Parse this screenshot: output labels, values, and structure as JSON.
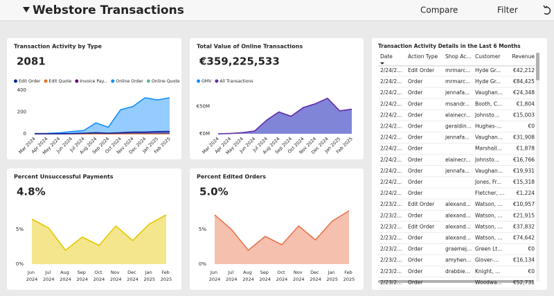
{
  "header": {
    "title": "Webstore Transactions",
    "actions": [
      "Compare",
      "Filter"
    ]
  },
  "chart_data": [
    {
      "type": "area",
      "title": "Transaction Activity by Type",
      "kpi": "2081",
      "categories": [
        "Mar 2024",
        "Apr 2024",
        "May 2024",
        "Jun 2024",
        "Jul 2024",
        "Aug 2024",
        "Sep 2024",
        "Oct 2024",
        "Nov 2024",
        "Dec 2024",
        "Jan 2025",
        "Feb 2025"
      ],
      "series": [
        {
          "name": "Online Order",
          "color": "#118dff",
          "values": [
            3,
            4,
            8,
            20,
            30,
            100,
            60,
            220,
            250,
            330,
            310,
            330
          ]
        },
        {
          "name": "Online Quote",
          "color": "#5fb7a0",
          "values": [
            0,
            0,
            0,
            0,
            0,
            0,
            0,
            0,
            0,
            0,
            0,
            0
          ]
        },
        {
          "name": "Invoice Pay...",
          "color": "#6b007b",
          "values": [
            0,
            0,
            0,
            0,
            1,
            2,
            1,
            2,
            2,
            3,
            3,
            3
          ]
        },
        {
          "name": "Edit Quote",
          "color": "#e8702a",
          "values": [
            0,
            0,
            0,
            0,
            0,
            0,
            0,
            0,
            1,
            1,
            1,
            1
          ]
        },
        {
          "name": "Edit Order",
          "color": "#12239e",
          "values": [
            0,
            0,
            1,
            2,
            5,
            10,
            5,
            10,
            15,
            15,
            20,
            22
          ]
        }
      ],
      "legend_order": [
        4,
        3,
        2,
        0,
        1
      ],
      "ylim": [
        0,
        400
      ],
      "yticks": [
        0,
        200,
        400
      ]
    },
    {
      "type": "area",
      "title": "Total Value of Online Transactions",
      "kpi": "€359,225,533",
      "categories": [
        "Mar 2024",
        "Apr 2024",
        "May 2024",
        "Jun 2024",
        "Jul 2024",
        "Aug 2024",
        "Sep 2024",
        "Oct 2024",
        "Nov 2024",
        "Dec 2024",
        "Jan 2025",
        "Feb 2025"
      ],
      "series": [
        {
          "name": "GMV",
          "color": "#118dff",
          "values": [
            0,
            0.5,
            2,
            5,
            25,
            40,
            32,
            48,
            55,
            65,
            42,
            45
          ]
        },
        {
          "name": "All Transactions",
          "color": "#6b2fa8",
          "values": [
            0,
            0.5,
            2,
            5,
            25,
            40,
            32,
            48,
            55,
            65,
            42,
            45
          ]
        }
      ],
      "legend_order": [
        0,
        1
      ],
      "ylim": [
        0,
        80
      ],
      "yticks": [
        {
          "value": 0,
          "label": "€0M"
        },
        {
          "value": 50,
          "label": "€50M"
        }
      ]
    },
    {
      "type": "area",
      "title": "Percent Unsuccessful Payments",
      "kpi": "4.8%",
      "categories": [
        "Jun 2024",
        "Jul 2024",
        "Aug 2024",
        "Sep 2024",
        "Oct 2024",
        "Nov 2024",
        "Dec 2024",
        "Jan 2025",
        "Feb 2025"
      ],
      "series": [
        {
          "color": "#e6c700",
          "values": [
            6.5,
            5.2,
            2.0,
            3.9,
            2.7,
            5.5,
            3.4,
            5.8,
            7.1
          ]
        }
      ],
      "ylim": [
        0,
        7.6
      ],
      "yticks": [
        {
          "value": 0,
          "label": "0%"
        },
        {
          "value": 5,
          "label": "5%"
        }
      ]
    },
    {
      "type": "area",
      "title": "Percent Edited Orders",
      "kpi": "5.0%",
      "categories": [
        "Jun 2024",
        "Jul 2024",
        "Aug 2024",
        "Sep 2024",
        "Oct 2024",
        "Nov 2024",
        "Dec 2024",
        "Jan 2025",
        "Feb 2025"
      ],
      "series": [
        {
          "color": "#e8734a",
          "values": [
            7.1,
            5.0,
            2.0,
            4.0,
            2.8,
            5.5,
            3.5,
            6.2,
            7.7
          ]
        }
      ],
      "ylim": [
        0,
        7.6
      ],
      "yticks": [
        {
          "value": 0,
          "label": "0%"
        },
        {
          "value": 5,
          "label": "5%"
        }
      ]
    }
  ],
  "table": {
    "title": "Transaction Activity Details in the Last 6 Months",
    "columns": [
      "Date",
      "Action Type",
      "Shop Ac...",
      "Customer",
      "Revenue"
    ],
    "rows": [
      [
        "2/24/2...",
        "Edit Order",
        "mrmarc...",
        "Hyde Gr...",
        "€42,212"
      ],
      [
        "2/24/2...",
        "Order",
        "mrmarc...",
        "Hyde Gr...",
        "€84,425"
      ],
      [
        "2/24/2...",
        "Order",
        "jennafa...",
        "Vaughan...",
        "€24,348"
      ],
      [
        "2/24/2...",
        "Order",
        "msandr...",
        "Booth, C...",
        "€1,804"
      ],
      [
        "2/24/2...",
        "Order",
        "elainecr...",
        "Johnsto...",
        "€15,003"
      ],
      [
        "2/24/2...",
        "Order",
        "geraldin...",
        "Hughes-...",
        "€0"
      ],
      [
        "2/24/2...",
        "Order",
        "jennafa...",
        "Vaughan...",
        "€31,908"
      ],
      [
        "2/24/2...",
        "Order",
        null,
        "Marshall...",
        "€1,878"
      ],
      [
        "2/24/2...",
        "Order",
        "elainecr...",
        "Johnsto...",
        "€16,766"
      ],
      [
        "2/24/2...",
        "Order",
        "jennafa...",
        "Vaughan...",
        "€19,931"
      ],
      [
        "2/24/2...",
        "Order",
        null,
        "Jones, Fr...",
        "€15,318"
      ],
      [
        "2/24/2...",
        "Order",
        null,
        "Fletcher, ...",
        "€1,224"
      ],
      [
        "2/23/2...",
        "Edit Order",
        "alexand...",
        "Watson, ...",
        "€10,957"
      ],
      [
        "2/23/2...",
        "Order",
        "alexand...",
        "Watson, ...",
        "€21,915"
      ],
      [
        "2/23/2...",
        "Edit Order",
        "alexand...",
        "Watson, ...",
        "€37,832"
      ],
      [
        "2/23/2...",
        "Order",
        "alexand...",
        "Watson, ...",
        "€74,642"
      ],
      [
        "2/23/2...",
        "Order",
        "graemej...",
        "Green Lt...",
        "€0"
      ],
      [
        "2/23/2...",
        "Order",
        "amyhen...",
        "Glover-...",
        "€16,134"
      ],
      [
        "2/23/2...",
        "Order",
        "drabbie...",
        "Knight, ...",
        "€0"
      ],
      [
        "2/23/2...",
        "Order",
        null,
        "Woodwa...",
        "€52,731"
      ]
    ]
  }
}
